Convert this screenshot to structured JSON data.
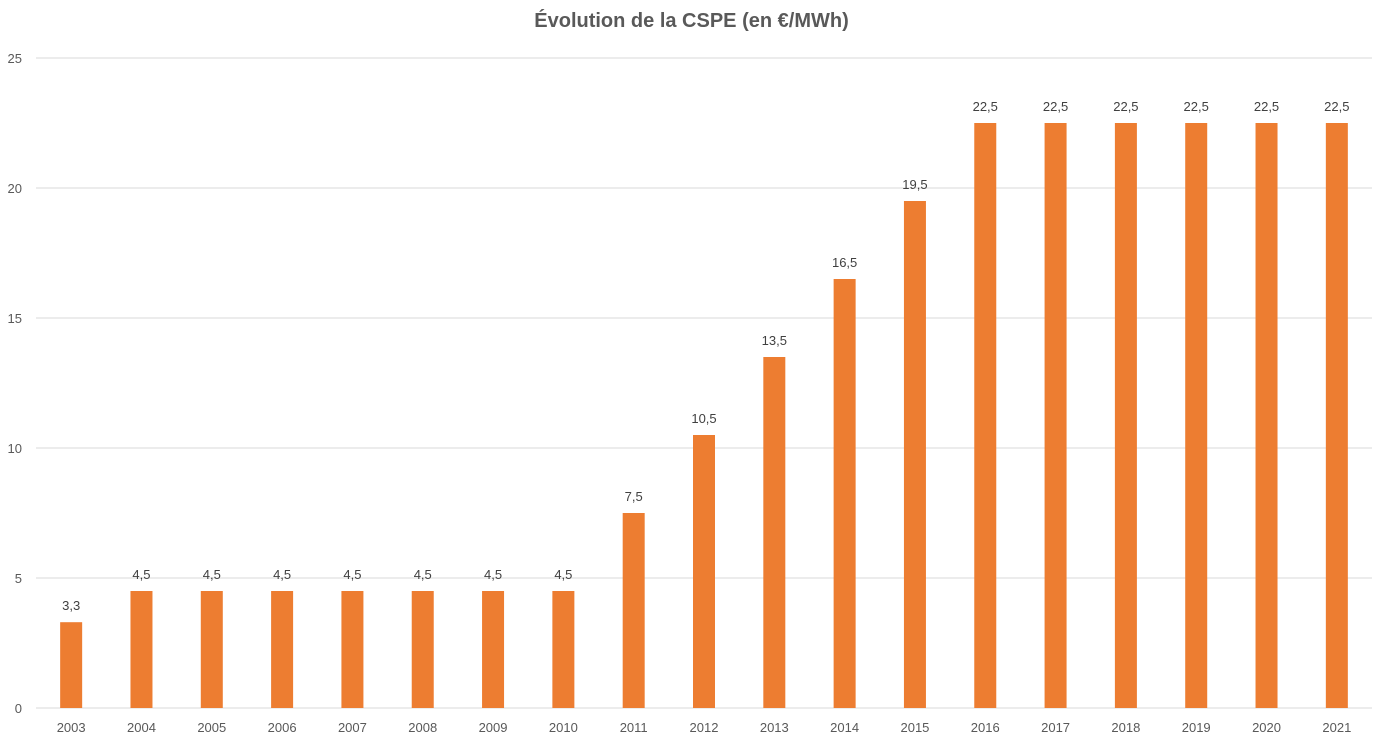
{
  "chart_data": {
    "type": "bar",
    "title": "Évolution de la CSPE (en €/MWh)",
    "xlabel": "",
    "ylabel": "",
    "categories": [
      "2003",
      "2004",
      "2005",
      "2006",
      "2007",
      "2008",
      "2009",
      "2010",
      "2011",
      "2012",
      "2013",
      "2014",
      "2015",
      "2016",
      "2017",
      "2018",
      "2019",
      "2020",
      "2021"
    ],
    "values": [
      3.3,
      4.5,
      4.5,
      4.5,
      4.5,
      4.5,
      4.5,
      4.5,
      7.5,
      10.5,
      13.5,
      16.5,
      19.5,
      22.5,
      22.5,
      22.5,
      22.5,
      22.5,
      22.5
    ],
    "data_labels": [
      "3,3",
      "4,5",
      "4,5",
      "4,5",
      "4,5",
      "4,5",
      "4,5",
      "4,5",
      "7,5",
      "10,5",
      "13,5",
      "16,5",
      "19,5",
      "22,5",
      "22,5",
      "22,5",
      "22,5",
      "22,5",
      "22,5"
    ],
    "ylim": [
      0,
      25
    ],
    "yticks": [
      0,
      5,
      10,
      15,
      20,
      25
    ],
    "grid": true,
    "legend": "none",
    "colors": {
      "bar": "#ED7D31",
      "grid": "#D9D9D9",
      "text": "#595959"
    }
  }
}
